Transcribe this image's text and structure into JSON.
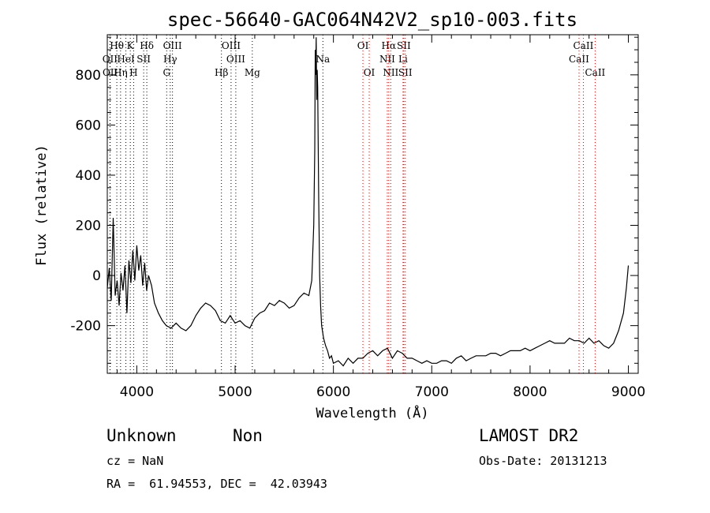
{
  "chart_data": {
    "type": "line",
    "title": "spec-56640-GAC064N42V2_sp10-003.fits",
    "xlabel": "Wavelength (Å)",
    "ylabel": "Flux (relative)",
    "xlim": [
      3700,
      9100
    ],
    "ylim": [
      -390,
      960
    ],
    "x_ticks": [
      4000,
      5000,
      6000,
      7000,
      8000,
      9000
    ],
    "y_ticks": [
      -200,
      0,
      200,
      400,
      600,
      800
    ],
    "grid": false,
    "series": [
      {
        "x": [
          3700,
          3720,
          3740,
          3760,
          3780,
          3800,
          3820,
          3840,
          3860,
          3880,
          3900,
          3920,
          3940,
          3960,
          3980,
          4000,
          4020,
          4040,
          4060,
          4080,
          4100,
          4120,
          4150,
          4180,
          4220,
          4260,
          4300,
          4350,
          4400,
          4450,
          4500,
          4550,
          4600,
          4650,
          4700,
          4750,
          4800,
          4850,
          4900,
          4950,
          5000,
          5050,
          5100,
          5150,
          5200,
          5250,
          5300,
          5350,
          5400,
          5450,
          5500,
          5550,
          5600,
          5650,
          5700,
          5750,
          5780,
          5800,
          5810,
          5815,
          5820,
          5825,
          5830,
          5835,
          5840,
          5850,
          5860,
          5870,
          5880,
          5900,
          5920,
          5940,
          5960,
          5980,
          6000,
          6050,
          6100,
          6150,
          6200,
          6250,
          6300,
          6350,
          6400,
          6450,
          6500,
          6550,
          6600,
          6650,
          6700,
          6750,
          6800,
          6850,
          6900,
          6950,
          7000,
          7050,
          7100,
          7150,
          7200,
          7250,
          7300,
          7350,
          7400,
          7450,
          7500,
          7550,
          7600,
          7650,
          7700,
          7750,
          7800,
          7850,
          7900,
          7950,
          8000,
          8050,
          8100,
          8150,
          8200,
          8250,
          8300,
          8350,
          8400,
          8450,
          8500,
          8550,
          8600,
          8650,
          8700,
          8750,
          8800,
          8850,
          8900,
          8950,
          8980,
          9000
        ],
        "y": [
          -50,
          30,
          -100,
          230,
          -80,
          -20,
          -120,
          10,
          -60,
          40,
          -150,
          60,
          -30,
          100,
          -20,
          120,
          20,
          80,
          -40,
          50,
          -60,
          0,
          -40,
          -110,
          -150,
          -180,
          -200,
          -210,
          -190,
          -210,
          -220,
          -200,
          -160,
          -130,
          -110,
          -120,
          -140,
          -180,
          -190,
          -160,
          -190,
          -180,
          -200,
          -210,
          -170,
          -150,
          -140,
          -110,
          -120,
          -100,
          -110,
          -130,
          -120,
          -90,
          -70,
          -80,
          -20,
          200,
          500,
          900,
          800,
          950,
          700,
          820,
          750,
          300,
          0,
          -120,
          -200,
          -250,
          -280,
          -300,
          -330,
          -320,
          -350,
          -340,
          -360,
          -330,
          -350,
          -330,
          -330,
          -310,
          -300,
          -320,
          -300,
          -290,
          -330,
          -300,
          -310,
          -330,
          -330,
          -340,
          -350,
          -340,
          -350,
          -350,
          -340,
          -340,
          -350,
          -330,
          -320,
          -340,
          -330,
          -320,
          -320,
          -320,
          -310,
          -310,
          -320,
          -310,
          -300,
          -300,
          -300,
          -290,
          -300,
          -290,
          -280,
          -270,
          -260,
          -270,
          -270,
          -270,
          -250,
          -260,
          -260,
          -270,
          -250,
          -270,
          -260,
          -280,
          -290,
          -270,
          -220,
          -150,
          -50,
          40
        ]
      }
    ],
    "line_markers": [
      {
        "label": "Hθ",
        "x": 3797,
        "row": 1,
        "style": "black-dotted"
      },
      {
        "label": "K",
        "x": 3934,
        "row": 1,
        "style": "black-dotted"
      },
      {
        "label": "Hδ",
        "x": 4102,
        "row": 1,
        "style": "black-dotted"
      },
      {
        "label": "OIII",
        "x": 4363,
        "row": 1,
        "style": "black-dotted"
      },
      {
        "label": "OIII",
        "x": 4959,
        "row": 1,
        "style": "black-dotted"
      },
      {
        "label": "OI",
        "x": 6300,
        "row": 1,
        "style": "red-dotted"
      },
      {
        "label": "Hα",
        "x": 6563,
        "row": 1,
        "style": "red-dotted"
      },
      {
        "label": "SII",
        "x": 6716,
        "row": 1,
        "style": "red-dotted"
      },
      {
        "label": "CaII",
        "x": 8542,
        "row": 1,
        "style": "red-dotted"
      },
      {
        "label": "OII",
        "x": 3727,
        "row": 2,
        "style": "black-dotted"
      },
      {
        "label": "HeI",
        "x": 3889,
        "row": 2,
        "style": "black-dotted"
      },
      {
        "label": "SII",
        "x": 4070,
        "row": 2,
        "style": "black-dotted"
      },
      {
        "label": "Hγ",
        "x": 4340,
        "row": 2,
        "style": "black-dotted"
      },
      {
        "label": "OIII",
        "x": 5007,
        "row": 2,
        "style": "black-dotted"
      },
      {
        "label": "Na",
        "x": 5893,
        "row": 2,
        "style": "black-dotted"
      },
      {
        "label": "NII",
        "x": 6548,
        "row": 2,
        "style": "red-dotted"
      },
      {
        "label": "Li",
        "x": 6708,
        "row": 2,
        "style": "red-dotted"
      },
      {
        "label": "CaII",
        "x": 8498,
        "row": 2,
        "style": "red-dotted"
      },
      {
        "label": "OII",
        "x": 3729,
        "row": 3,
        "style": "black-dotted"
      },
      {
        "label": "Hη",
        "x": 3835,
        "row": 3,
        "style": "black-dotted"
      },
      {
        "label": "H",
        "x": 3968,
        "row": 3,
        "style": "black-dotted"
      },
      {
        "label": "G",
        "x": 4304,
        "row": 3,
        "style": "black-dotted"
      },
      {
        "label": "Hβ",
        "x": 4861,
        "row": 3,
        "style": "black-dotted"
      },
      {
        "label": "Mg",
        "x": 5175,
        "row": 3,
        "style": "black-dotted"
      },
      {
        "label": "OI",
        "x": 6364,
        "row": 3,
        "style": "red-dotted"
      },
      {
        "label": "NII",
        "x": 6583,
        "row": 3,
        "style": "red-dotted"
      },
      {
        "label": "SII",
        "x": 6731,
        "row": 3,
        "style": "red-dotted"
      },
      {
        "label": "CaII",
        "x": 8662,
        "row": 3,
        "style": "red-dotted"
      }
    ],
    "colors": {
      "spectrum": "#000000",
      "marker_black": "#000000",
      "marker_red": "#cc0000"
    }
  },
  "info": {
    "class": "Unknown",
    "subclass": "Non",
    "survey": "LAMOST DR2",
    "cz": "cz = NaN",
    "obs_date": "Obs-Date: 20131213",
    "coords": "RA =  61.94553, DEC =  42.03943"
  }
}
